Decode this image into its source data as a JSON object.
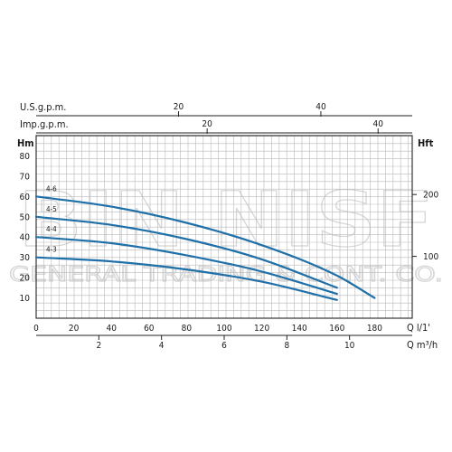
{
  "chart_data": {
    "type": "line",
    "watermark": [
      "BIN NISF",
      "GENERAL TRADING & CONT. CO."
    ],
    "top_axes": [
      {
        "label": "U.S.g.p.m.",
        "ticks": [
          20,
          40
        ],
        "per_l_min": 0.26417
      },
      {
        "label": "Imp.g.p.m.",
        "ticks": [
          20,
          40
        ],
        "per_l_min": 0.21997
      }
    ],
    "y_left": {
      "label": "Hm",
      "ylim": [
        0,
        90
      ],
      "ticks": [
        10,
        20,
        30,
        40,
        50,
        60,
        70,
        80
      ]
    },
    "y_right": {
      "label": "Hft",
      "ticks": [
        100,
        200
      ],
      "per_m": 3.28084
    },
    "x_primary": {
      "label": "Q l/1'",
      "xlim": [
        0,
        200
      ],
      "ticks": [
        0,
        20,
        40,
        60,
        80,
        100,
        120,
        140,
        160,
        180
      ]
    },
    "x_secondary": {
      "label": "Q m³/h",
      "ticks": [
        2,
        4,
        6,
        8,
        10
      ],
      "per_l_min": 0.06
    },
    "grid": true,
    "series": [
      {
        "name": "4-6",
        "color": "#1f6fa8",
        "x": [
          0,
          40,
          80,
          120,
          160,
          180
        ],
        "y": [
          60,
          55,
          47,
          36,
          21,
          10
        ]
      },
      {
        "name": "4-5",
        "color": "#1f6fa8",
        "x": [
          0,
          40,
          80,
          120,
          160
        ],
        "y": [
          50,
          46,
          39,
          29,
          15
        ]
      },
      {
        "name": "4-4",
        "color": "#1f6fa8",
        "x": [
          0,
          40,
          80,
          120,
          160
        ],
        "y": [
          40,
          37,
          31,
          23,
          12
        ]
      },
      {
        "name": "4-3",
        "color": "#1f6fa8",
        "x": [
          0,
          40,
          80,
          120,
          160
        ],
        "y": [
          30,
          28,
          24,
          18,
          9
        ]
      }
    ]
  }
}
